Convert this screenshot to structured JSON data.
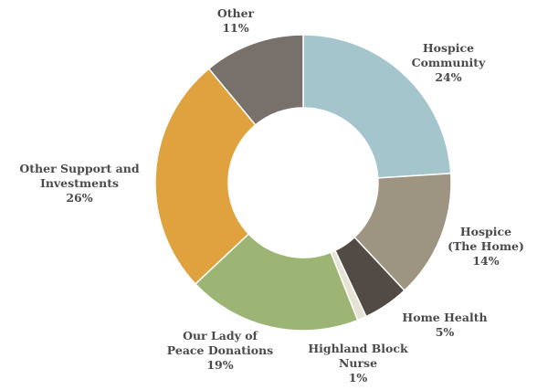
{
  "chart_data": {
    "type": "pie",
    "variant": "donut",
    "start": "12 o'clock, clockwise",
    "slices": [
      {
        "name": "Hospice Community",
        "lines": [
          "Hospice",
          "Community"
        ],
        "value": 24,
        "pct_label": "24%",
        "color": "#a3c5cb"
      },
      {
        "name": "Hospice (The Home)",
        "lines": [
          "Hospice",
          "(The Home)"
        ],
        "value": 14,
        "pct_label": "14%",
        "color": "#9e9482"
      },
      {
        "name": "Home Health",
        "lines": [
          "Home Health"
        ],
        "value": 5,
        "pct_label": "5%",
        "color": "#524b45"
      },
      {
        "name": "Highland Block Nurse",
        "lines": [
          "Highland Block",
          "Nurse"
        ],
        "value": 1,
        "pct_label": "1%",
        "color": "#e7e3d4"
      },
      {
        "name": "Our Lady of Peace Donations",
        "lines": [
          "Our Lady of",
          "Peace Donations"
        ],
        "value": 19,
        "pct_label": "19%",
        "color": "#9cb574"
      },
      {
        "name": "Other Support and Investments",
        "lines": [
          "Other Support and",
          "Investments"
        ],
        "value": 26,
        "pct_label": "26%",
        "color": "#dfa23e"
      },
      {
        "name": "Other",
        "lines": [
          "Other"
        ],
        "value": 11,
        "pct_label": "11%",
        "color": "#78706b"
      }
    ]
  }
}
